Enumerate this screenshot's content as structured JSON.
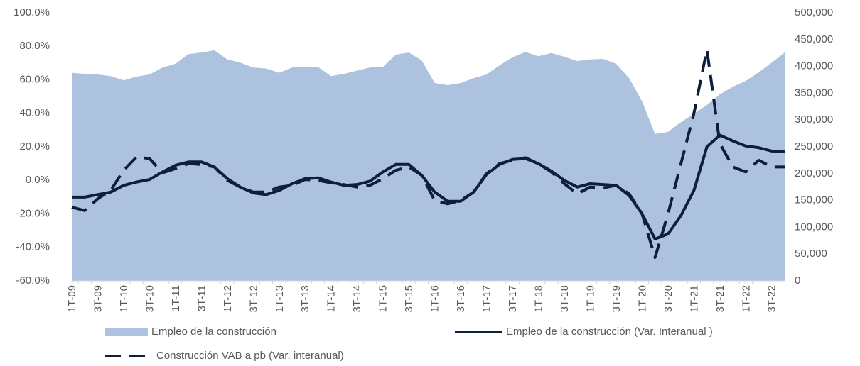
{
  "chart_data": {
    "type": "line",
    "categories": [
      "1T-09",
      null,
      "3T-09",
      null,
      "1T-10",
      null,
      "3T-10",
      null,
      "1T-11",
      null,
      "3T-11",
      null,
      "1T-12",
      null,
      "3T-12",
      null,
      "1T-13",
      null,
      "3T-13",
      null,
      "1T-14",
      null,
      "3T-14",
      null,
      "1T-15",
      null,
      "3T-15",
      null,
      "1T-16",
      null,
      "3T-16",
      null,
      "1T-17",
      null,
      "3T-17",
      null,
      "1T-18",
      null,
      "3T-18",
      null,
      "1T-19",
      null,
      "3T-19",
      null,
      "1T-20",
      null,
      "3T-20",
      null,
      "1T-21",
      null,
      "3T-21",
      null,
      "1T-22",
      null,
      "3T-22",
      null
    ],
    "series": [
      {
        "name": "Empleo de la construcción",
        "type": "area",
        "axis": "y2",
        "color": "#adc2de",
        "values": [
          388000,
          386000,
          385000,
          382000,
          374000,
          381000,
          385000,
          398000,
          405000,
          423000,
          426000,
          430000,
          413000,
          407000,
          398000,
          396000,
          388000,
          398000,
          399000,
          399000,
          382000,
          386000,
          392000,
          398000,
          399000,
          422000,
          426000,
          411000,
          369000,
          365000,
          369000,
          378000,
          385000,
          402000,
          417000,
          427000,
          419000,
          425000,
          418000,
          410000,
          413000,
          414000,
          405000,
          378000,
          335000,
          274000,
          278000,
          296000,
          312000,
          328000,
          348000,
          362000,
          373000,
          389000,
          407000,
          426000
        ]
      },
      {
        "name": "Empleo de la construcción (Var. Interanual )",
        "type": "line",
        "dash": false,
        "color": "#0e1f3b",
        "values": [
          -10,
          -10,
          -8.5,
          -7,
          -3,
          -1,
          0.5,
          5,
          9,
          11,
          11,
          8,
          1,
          -4,
          -7.5,
          -8.5,
          -6,
          -2,
          1,
          1.5,
          -1,
          -3,
          -2.5,
          -0.5,
          5,
          9.5,
          9.5,
          3,
          -7,
          -12.5,
          -12.5,
          -7,
          3.5,
          9.5,
          12.5,
          13,
          10,
          5.5,
          0,
          -4,
          -2,
          -2.5,
          -3,
          -9,
          -20,
          -35,
          -32,
          -21,
          -6,
          20,
          27,
          23.5,
          20.5,
          19.5,
          17.5,
          17
        ]
      },
      {
        "name": "Construcción VAB a pb (Var. interanual)",
        "type": "line",
        "dash": true,
        "color": "#0e1f3b",
        "values": [
          -16,
          -18,
          -11,
          -6,
          6,
          14,
          13,
          4.5,
          7,
          10,
          9.5,
          8,
          0,
          -4,
          -7,
          -7,
          -4,
          -3,
          0.5,
          0,
          -1.5,
          -2.5,
          -4,
          -3,
          1,
          6,
          8,
          3,
          -12,
          -14,
          -12,
          -7,
          4,
          10,
          12,
          13.5,
          10,
          5,
          -2,
          -8,
          -4,
          -4.5,
          -3,
          -8,
          -20,
          -46,
          -20,
          10,
          40,
          78,
          22,
          8,
          5,
          12,
          8,
          8
        ]
      }
    ],
    "ylim": [
      -60,
      100
    ],
    "yticks": [
      {
        "value": -60,
        "label": "-60.0%"
      },
      {
        "value": -40,
        "label": "-40.0%"
      },
      {
        "value": -20,
        "label": "-20.0%"
      },
      {
        "value": 0,
        "label": "0.0%"
      },
      {
        "value": 20,
        "label": "20.0%"
      },
      {
        "value": 40,
        "label": "40.0%"
      },
      {
        "value": 60,
        "label": "60.0%"
      },
      {
        "value": 80,
        "label": "80.0%"
      },
      {
        "value": 100,
        "label": "100.0%"
      }
    ],
    "y2lim": [
      0,
      500000
    ],
    "y2ticks": [
      0,
      {
        "value": 50000,
        "label": "50,000"
      },
      {
        "value": 100000,
        "label": "100,000"
      },
      {
        "value": 150000,
        "label": "150,000"
      },
      {
        "value": 200000,
        "label": "200,000"
      },
      {
        "value": 250000,
        "label": "250,000"
      },
      {
        "value": 300000,
        "label": "300,000"
      },
      {
        "value": 350000,
        "label": "350,000"
      },
      {
        "value": 400000,
        "label": "400,000"
      },
      {
        "value": 450000,
        "label": "450,000"
      },
      {
        "value": 500000,
        "label": "500,000"
      }
    ],
    "grid": false,
    "legend": "bottom"
  }
}
